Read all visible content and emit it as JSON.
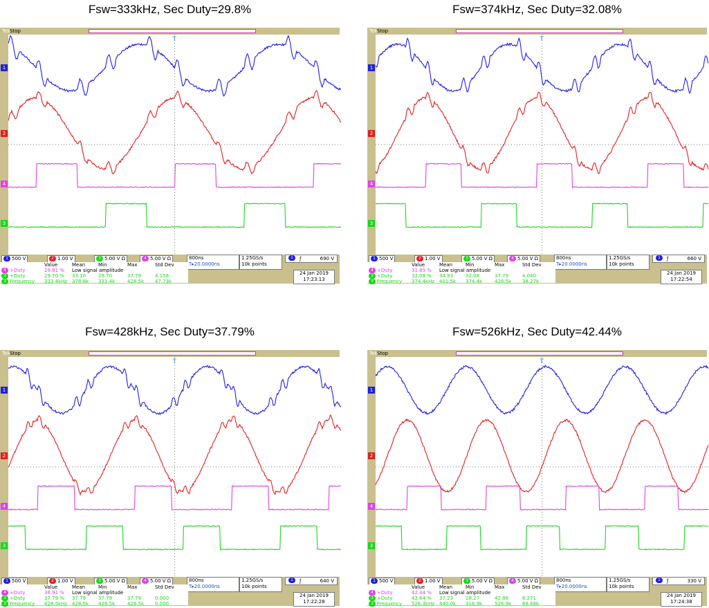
{
  "colors": {
    "ch1": "#1f1fe0",
    "ch2": "#e02020",
    "ch3": "#18d818",
    "ch4": "#e040e8",
    "bezel": "#c9c08e",
    "grid": "#7a7a7a"
  },
  "chart_data": [
    {
      "type": "line",
      "title": "Fsw=333kHz, Sec Duty=29.8%",
      "brand": "Tek",
      "status": "Stop",
      "trigger_marker": "T",
      "channels": [
        {
          "num": "1",
          "scale": "500 V",
          "color": "#1f1fe0"
        },
        {
          "num": "2",
          "scale": "1.00 V",
          "color": "#e02020"
        },
        {
          "num": "3",
          "scale": "5.00 V",
          "suffix": "Ω",
          "color": "#18d818"
        },
        {
          "num": "4",
          "scale": "5.00 V",
          "suffix": "Ω",
          "color": "#e040e8"
        }
      ],
      "timebase": "800ns",
      "trigger_pos": "T▸20.0000ns",
      "sample_rate": "1.25GS/s",
      "record_length": "10k points",
      "trigger_channel": "1",
      "trigger_slope": "ƒ",
      "trigger_level": "690 V",
      "measure_headers": [
        "Value",
        "Mean",
        "Min",
        "Max",
        "Std Dev"
      ],
      "measurements": [
        {
          "ch": "4",
          "name": "+Duty",
          "values": [
            "29.81 %",
            "Low signal amplitude",
            "",
            "",
            ""
          ]
        },
        {
          "ch": "3",
          "name": "+Duty",
          "values": [
            "29.70 %",
            "33.10",
            "29.70",
            "37.79",
            "4.158"
          ]
        },
        {
          "ch": "3",
          "name": "Frequency",
          "values": [
            "333.4kHz",
            "378.8k",
            "333.4k",
            "428.5k",
            "47.73k"
          ]
        }
      ],
      "date": "24 Jan 2019",
      "time": "17:23:13",
      "period_divs": 4.17,
      "duty": 0.298,
      "phase": 0.3,
      "distortion": 1.0,
      "x_range_divs": [
        0,
        10
      ],
      "y_range_divs": [
        -4,
        4
      ],
      "series": [
        {
          "name": "1",
          "color": "#1f1fe0",
          "type": "sine",
          "offset_div": 2.8,
          "amp_div": 0.85
        },
        {
          "name": "2",
          "color": "#e02020",
          "type": "sine",
          "offset_div": 0.4,
          "amp_div": 1.3
        },
        {
          "name": "4",
          "color": "#e040e8",
          "type": "square",
          "low_div": -1.55,
          "high_div": -0.7,
          "polarity": "inverted"
        },
        {
          "name": "3",
          "color": "#18d818",
          "type": "square",
          "low_div": -3.0,
          "high_div": -2.15,
          "polarity": "normal"
        }
      ]
    },
    {
      "type": "line",
      "title": "Fsw=374kHz, Sec Duty=32.08%",
      "brand": "Tek",
      "status": "Stop",
      "trigger_marker": "T",
      "channels": [
        {
          "num": "1",
          "scale": "500 V",
          "color": "#1f1fe0"
        },
        {
          "num": "2",
          "scale": "1.00 V",
          "color": "#e02020"
        },
        {
          "num": "3",
          "scale": "5.00 V",
          "suffix": "Ω",
          "color": "#18d818"
        },
        {
          "num": "4",
          "scale": "5.00 V",
          "suffix": "Ω",
          "color": "#e040e8"
        }
      ],
      "timebase": "800ns",
      "trigger_pos": "T▸20.0000ns",
      "sample_rate": "1.25GS/s",
      "record_length": "10k points",
      "trigger_channel": "1",
      "trigger_slope": "ƒ",
      "trigger_level": "660 V",
      "measure_headers": [
        "Value",
        "Mean",
        "Min",
        "Max",
        "Std Dev"
      ],
      "measurements": [
        {
          "ch": "4",
          "name": "+Duty",
          "values": [
            "31.89 %",
            "Low signal amplitude",
            "",
            "",
            ""
          ]
        },
        {
          "ch": "3",
          "name": "+Duty",
          "values": [
            "32.08 %",
            "34.93",
            "32.08",
            "37.79",
            "4.040"
          ]
        },
        {
          "ch": "3",
          "name": "Frequency",
          "values": [
            "374.4kHz",
            "401.5k",
            "374.4k",
            "428.5k",
            "38.27k"
          ]
        }
      ],
      "date": "24 Jan 2019",
      "time": "17:22:54",
      "period_divs": 3.34,
      "duty": 0.32,
      "phase": 0.05,
      "distortion": 0.9,
      "x_range_divs": [
        0,
        10
      ],
      "y_range_divs": [
        -4,
        4
      ],
      "series": [
        {
          "name": "1",
          "color": "#1f1fe0",
          "type": "sine",
          "offset_div": 2.8,
          "amp_div": 0.85
        },
        {
          "name": "2",
          "color": "#e02020",
          "type": "sine",
          "offset_div": 0.4,
          "amp_div": 1.3
        },
        {
          "name": "4",
          "color": "#e040e8",
          "type": "square",
          "low_div": -1.55,
          "high_div": -0.7,
          "polarity": "inverted"
        },
        {
          "name": "3",
          "color": "#18d818",
          "type": "square",
          "low_div": -3.0,
          "high_div": -2.15,
          "polarity": "normal"
        }
      ]
    },
    {
      "type": "line",
      "title": "Fsw=428kHz, Sec Duty=37.79%",
      "brand": "Tek",
      "status": "Stop",
      "trigger_marker": "T",
      "channels": [
        {
          "num": "1",
          "scale": "500 V",
          "color": "#1f1fe0"
        },
        {
          "num": "2",
          "scale": "1.00 V",
          "color": "#e02020"
        },
        {
          "num": "3",
          "scale": "5.00 V",
          "suffix": "Ω",
          "color": "#18d818"
        },
        {
          "num": "4",
          "scale": "5.00 V",
          "suffix": "Ω",
          "color": "#e040e8"
        }
      ],
      "timebase": "800ns",
      "trigger_pos": "T▸20.0000ns",
      "sample_rate": "1.25GS/s",
      "record_length": "10k points",
      "trigger_channel": "1",
      "trigger_slope": "ƒ",
      "trigger_level": "640 V",
      "measure_headers": [
        "Value",
        "Mean",
        "Min",
        "Max",
        "Std Dev"
      ],
      "measurements": [
        {
          "ch": "4",
          "name": "+Duty",
          "values": [
            "36.91 %",
            "Low signal amplitude",
            "",
            "",
            ""
          ]
        },
        {
          "ch": "3",
          "name": "+Duty",
          "values": [
            "37.79 %",
            "37.79",
            "37.79",
            "37.79",
            "0.000"
          ]
        },
        {
          "ch": "3",
          "name": "Frequency",
          "values": [
            "428.5kHz",
            "428.5k",
            "428.5k",
            "428.5k",
            "0.000"
          ]
        }
      ],
      "date": "24 Jan 2019",
      "time": "17:22:28",
      "period_divs": 2.92,
      "duty": 0.378,
      "phase": 0.2,
      "distortion": 0.7,
      "x_range_divs": [
        0,
        10
      ],
      "y_range_divs": [
        -4,
        4
      ],
      "series": [
        {
          "name": "1",
          "color": "#1f1fe0",
          "type": "sine",
          "offset_div": 2.8,
          "amp_div": 0.85
        },
        {
          "name": "2",
          "color": "#e02020",
          "type": "sine",
          "offset_div": 0.4,
          "amp_div": 1.3
        },
        {
          "name": "4",
          "color": "#e040e8",
          "type": "square",
          "low_div": -1.55,
          "high_div": -0.7,
          "polarity": "inverted"
        },
        {
          "name": "3",
          "color": "#18d818",
          "type": "square",
          "low_div": -3.0,
          "high_div": -2.15,
          "polarity": "normal"
        }
      ]
    },
    {
      "type": "line",
      "title": "Fsw=526kHz, Sec Duty=42.44%",
      "brand": "Tek",
      "status": "Stop",
      "trigger_marker": "T",
      "channels": [
        {
          "num": "1",
          "scale": "500 V",
          "color": "#1f1fe0"
        },
        {
          "num": "2",
          "scale": "1.00 V",
          "color": "#e02020"
        },
        {
          "num": "3",
          "scale": "5.00 V",
          "suffix": "Ω",
          "color": "#18d818"
        },
        {
          "num": "4",
          "scale": "5.00 V",
          "suffix": "Ω",
          "color": "#e040e8"
        }
      ],
      "timebase": "800ns",
      "trigger_pos": "T▸20.0000ns",
      "sample_rate": "1.25GS/s",
      "record_length": "10k points",
      "trigger_channel": "1",
      "trigger_slope": "ƒ",
      "trigger_level": "330 V",
      "measure_headers": [
        "Value",
        "Mean",
        "Min",
        "Max",
        "Std Dev"
      ],
      "measurements": [
        {
          "ch": "4",
          "name": "+Duty",
          "values": [
            "42.44 %",
            "Low signal amplitude",
            "",
            "",
            ""
          ]
        },
        {
          "ch": "3",
          "name": "+Duty",
          "values": [
            "42.64 %",
            "37.23",
            "28.27",
            "42.86",
            "6.271"
          ]
        },
        {
          "ch": "3",
          "name": "Frequency",
          "values": [
            "526.3kHz",
            "440.0k",
            "316.9k",
            "526.9k",
            "88.68k"
          ]
        }
      ],
      "date": "24 Jan 2019",
      "time": "17:24:38",
      "period_divs": 2.38,
      "duty": 0.424,
      "phase": 0.1,
      "distortion": 0.0,
      "x_range_divs": [
        0,
        10
      ],
      "y_range_divs": [
        -4,
        4
      ],
      "series": [
        {
          "name": "1",
          "color": "#1f1fe0",
          "type": "sine",
          "offset_div": 2.8,
          "amp_div": 0.85
        },
        {
          "name": "2",
          "color": "#e02020",
          "type": "sine",
          "offset_div": 0.4,
          "amp_div": 1.3
        },
        {
          "name": "4",
          "color": "#e040e8",
          "type": "square",
          "low_div": -1.55,
          "high_div": -0.7,
          "polarity": "inverted"
        },
        {
          "name": "3",
          "color": "#18d818",
          "type": "square",
          "low_div": -3.0,
          "high_div": -2.15,
          "polarity": "normal"
        }
      ]
    }
  ]
}
